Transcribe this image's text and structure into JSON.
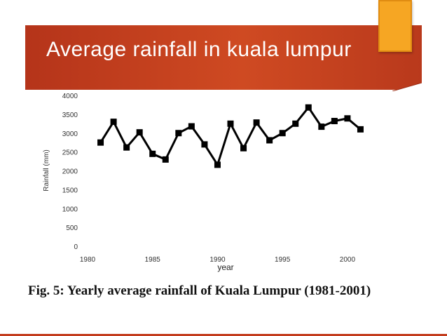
{
  "slide": {
    "title": "Average rainfall in kuala lumpur",
    "caption": "Fig. 5: Yearly average rainfall of Kuala Lumpur (1981-2001)",
    "accent_color": "#cf4a22",
    "tab_color": "#f6a623"
  },
  "chart_data": {
    "type": "line",
    "title": "",
    "xlabel": "year",
    "ylabel": "Rainfall (mm)",
    "x": [
      1981,
      1982,
      1983,
      1984,
      1985,
      1986,
      1987,
      1988,
      1989,
      1990,
      1991,
      1992,
      1993,
      1994,
      1995,
      1996,
      1997,
      1998,
      1999,
      2000,
      2001
    ],
    "series": [
      {
        "name": "Rainfall",
        "values": [
          2750,
          3300,
          2620,
          3020,
          2450,
          2300,
          3000,
          3180,
          2700,
          2160,
          3250,
          2600,
          3280,
          2810,
          3000,
          3250,
          3680,
          3170,
          3320,
          3390,
          3100
        ]
      }
    ],
    "xlim": [
      1980,
      2002
    ],
    "ylim": [
      0,
      4000
    ],
    "xticks": [
      1980,
      1985,
      1990,
      1995,
      2000
    ],
    "xtick_labels": [
      "1980",
      "1985",
      "1990",
      "1995",
      "2000"
    ],
    "yticks": [
      0,
      500,
      1000,
      1500,
      2000,
      2500,
      3000,
      3500,
      4000
    ],
    "ytick_labels": [
      "0",
      "500",
      "1000",
      "1500",
      "2000",
      "2500",
      "3000",
      "3500",
      "4000"
    ],
    "grid": false,
    "marker": "square"
  }
}
